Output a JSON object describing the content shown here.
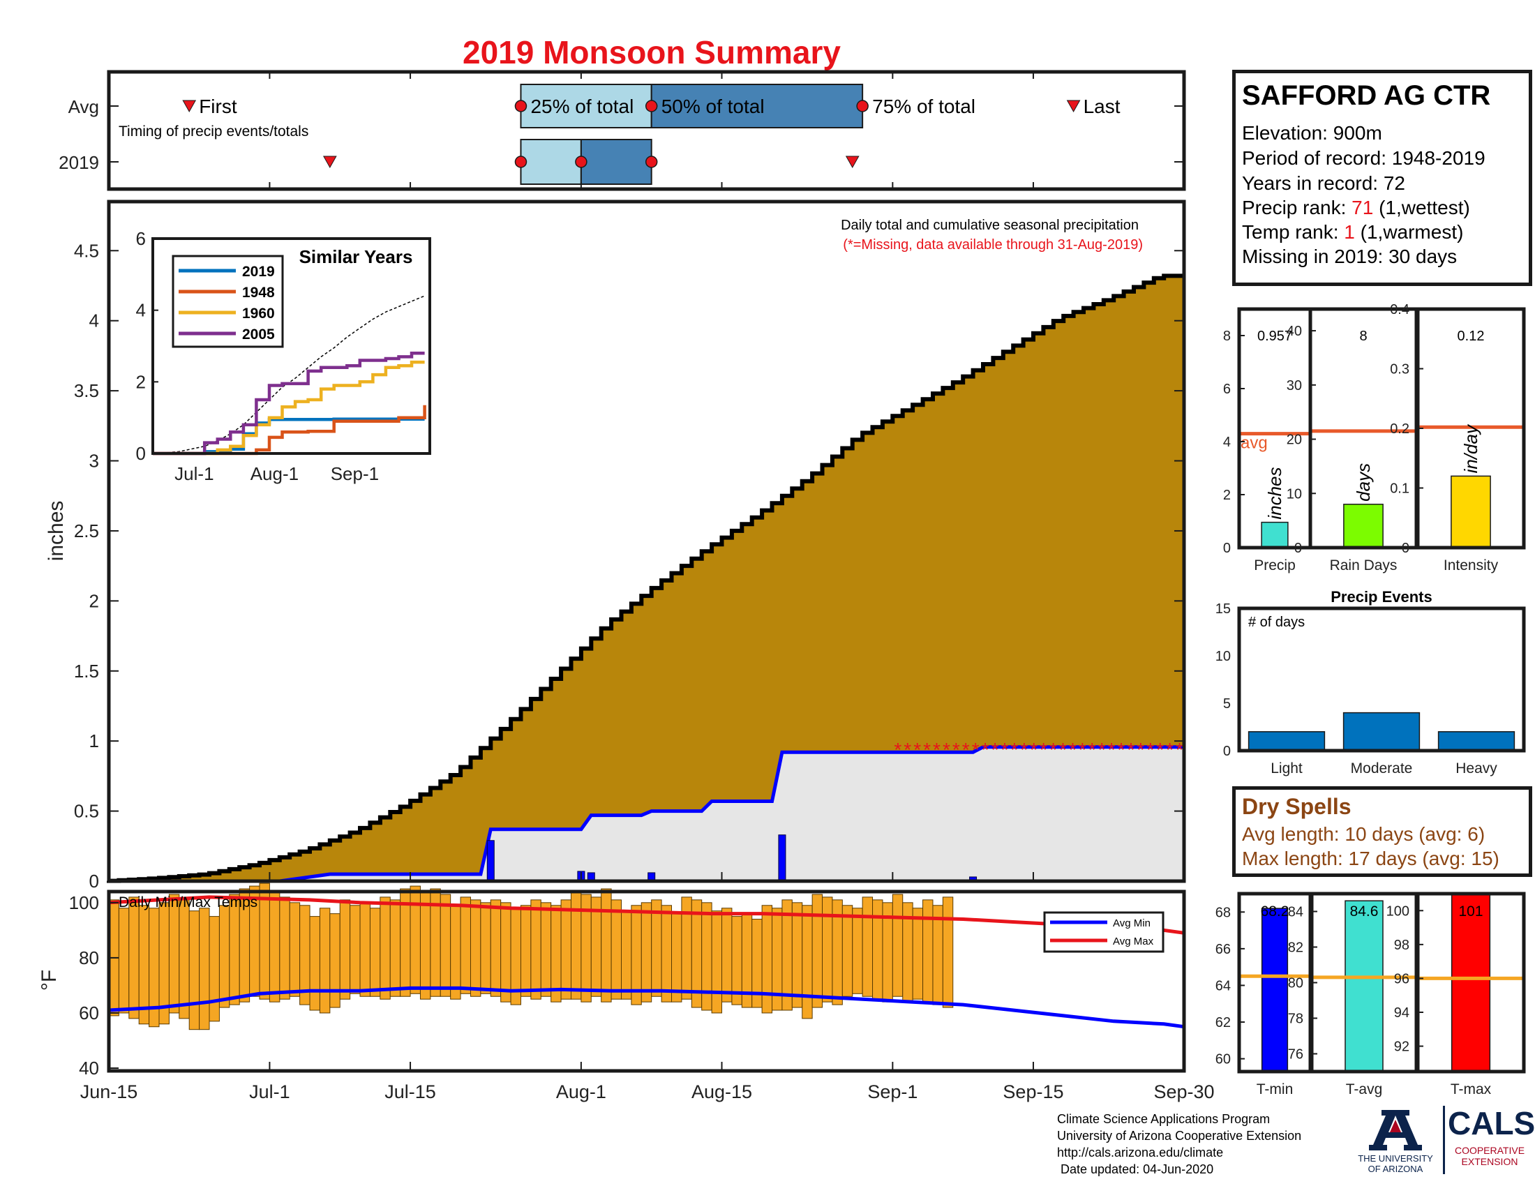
{
  "title": "2019 Monsoon Summary",
  "station": {
    "name": "SAFFORD AG CTR",
    "elevation_label": "Elevation: 900m",
    "period_label": "Period of record: 1948-2019",
    "years_label": "Years in record: 72",
    "precip_rank_prefix": "Precip rank: ",
    "precip_rank_value": "71",
    "precip_rank_suffix": " (1,wettest)",
    "temp_rank_prefix": "Temp rank: ",
    "temp_rank_value": "1",
    "temp_rank_suffix": " (1,warmest)",
    "missing_label": "Missing in 2019: 30 days"
  },
  "dry_spells": {
    "title": "Dry Spells",
    "avg_line": "Avg length: 10 days (avg: 6)",
    "max_line": "Max length: 17 days (avg: 15)"
  },
  "credits": {
    "line1": "Climate Science Applications Program",
    "line2": "University of Arizona Cooperative Extension",
    "line3": "http://cals.arizona.edu/climate",
    "line4": " Date updated: 04-Jun-2020",
    "ua_line1": "THE UNIVERSITY",
    "ua_line2": "OF ARIZONA",
    "cals": "CALS",
    "cals_line1": "COOPERATIVE",
    "cals_line2": "EXTENSION"
  },
  "colors": {
    "title_red": "#e8141b",
    "cumulative_fill": "#b8860b",
    "cumulative_2019_fill": "#e6e6e6",
    "line_2019": "#0000ff",
    "quartile_light": "#add8e6",
    "quartile_dark": "#4682b4",
    "avg_line": "#e8592a",
    "temp_bar": "#f5a623",
    "avg_min": "#0000ff",
    "avg_max": "#e8141b",
    "bar_blue": "#0072bd"
  },
  "chart_data": [
    {
      "id": "timing",
      "type": "timeline",
      "rows": [
        {
          "label": "Avg",
          "first": "Jun-23",
          "q25": "Jul-26",
          "q50": "Aug-8",
          "q75": "Aug-29",
          "last": "Sep-19"
        },
        {
          "label": "2019",
          "first": "Jul-7",
          "q25": "Jul-26",
          "q50": "Aug-1",
          "q75": "Aug-8",
          "last": "Aug-28"
        }
      ],
      "marker_labels": {
        "first": "First",
        "q25": "25% of total",
        "q50": "50% of total",
        "q75": "75% of total",
        "last": "Last"
      },
      "annotation": "Timing of precip events/totals"
    },
    {
      "id": "main",
      "type": "area",
      "ylabel": "inches",
      "ylim": [
        0,
        4.85
      ],
      "yticks": [
        "0",
        "0.5",
        "1",
        "1.5",
        "2",
        "2.5",
        "3",
        "3.5",
        "4",
        "4.5"
      ],
      "xticks": [
        "Jun-15",
        "Jul-1",
        "Jul-15",
        "Aug-1",
        "Aug-15",
        "Sep-1",
        "Sep-15",
        "Sep-30"
      ],
      "annotation_line1": "Daily total and cumulative seasonal precipitation",
      "annotation_line2": "(*=Missing, data available through 31-Aug-2019)",
      "missing_marker": "*",
      "missing_count": 30,
      "avg_cumulative": {
        "day": [
          0,
          5,
          10,
          15,
          20,
          25,
          30,
          35,
          40,
          45,
          50,
          55,
          60,
          65,
          70,
          75,
          80,
          85,
          90,
          95,
          100,
          105
        ],
        "value": [
          0.0,
          0.02,
          0.05,
          0.12,
          0.22,
          0.36,
          0.55,
          0.78,
          1.12,
          1.48,
          1.84,
          2.12,
          2.38,
          2.62,
          2.88,
          3.18,
          3.38,
          3.58,
          3.8,
          4.02,
          4.16,
          4.32
        ]
      },
      "cumulative_2019": {
        "day": [
          0,
          17,
          22,
          37,
          38,
          47,
          48,
          53,
          54,
          59,
          60,
          66,
          67,
          86,
          87,
          107
        ],
        "value": [
          0.0,
          0.0,
          0.05,
          0.05,
          0.37,
          0.37,
          0.47,
          0.47,
          0.5,
          0.5,
          0.57,
          0.57,
          0.92,
          0.92,
          0.957,
          0.957
        ]
      },
      "daily_2019": [
        {
          "day": 38,
          "value": 0.29
        },
        {
          "day": 47,
          "value": 0.07
        },
        {
          "day": 48,
          "value": 0.06
        },
        {
          "day": 54,
          "value": 0.06
        },
        {
          "day": 67,
          "value": 0.33
        },
        {
          "day": 86,
          "value": 0.03
        }
      ]
    },
    {
      "id": "inset",
      "type": "line",
      "title": "Similar Years",
      "ylim": [
        0,
        6
      ],
      "yticks": [
        "0",
        "2",
        "4",
        "6"
      ],
      "xticks": [
        "Jul-1",
        "Aug-1",
        "Sep-1"
      ],
      "x": [
        0,
        10,
        20,
        25,
        30,
        35,
        40,
        45,
        50,
        55,
        60,
        65,
        70,
        75,
        80,
        85,
        90,
        95,
        100,
        105
      ],
      "series": [
        {
          "name": "2019",
          "color": "#0072bd",
          "values": [
            0,
            0,
            0.05,
            0.05,
            0.12,
            0.55,
            0.85,
            0.95,
            0.95,
            0.95,
            0.95,
            0.95,
            0.96,
            0.96,
            0.96,
            0.96,
            0.96,
            0.96,
            0.96,
            0.96
          ]
        },
        {
          "name": "1948",
          "color": "#d95319",
          "values": [
            0,
            0,
            0,
            0,
            0,
            0,
            0.1,
            0.45,
            0.6,
            0.6,
            0.62,
            0.62,
            0.9,
            0.9,
            0.9,
            0.9,
            0.9,
            1.0,
            1.0,
            1.35
          ]
        },
        {
          "name": "1960",
          "color": "#edb120",
          "values": [
            0,
            0,
            0,
            0.1,
            0.2,
            0.5,
            0.8,
            1.0,
            1.3,
            1.45,
            1.5,
            1.8,
            1.9,
            1.9,
            2.0,
            2.2,
            2.4,
            2.45,
            2.55,
            2.55
          ]
        },
        {
          "name": "2005",
          "color": "#7e2f8e",
          "values": [
            0,
            0,
            0.3,
            0.4,
            0.6,
            0.8,
            1.5,
            1.9,
            1.95,
            1.95,
            2.3,
            2.4,
            2.4,
            2.45,
            2.6,
            2.6,
            2.65,
            2.7,
            2.8,
            2.8
          ]
        }
      ],
      "avg_dashed": [
        0,
        0.05,
        0.2,
        0.35,
        0.55,
        0.8,
        1.15,
        1.5,
        1.85,
        2.1,
        2.4,
        2.7,
        2.95,
        3.25,
        3.5,
        3.75,
        3.95,
        4.1,
        4.25,
        4.4
      ]
    },
    {
      "id": "temps",
      "type": "bar",
      "title": "Daily Min/Max Temps",
      "ylabel": "°F",
      "ylim": [
        39,
        104
      ],
      "yticks": [
        "40",
        "60",
        "80",
        "100"
      ],
      "xticks": [
        "Jun-15",
        "Jul-1",
        "Jul-15",
        "Aug-1",
        "Aug-15",
        "Sep-1",
        "Sep-15",
        "Sep-30"
      ],
      "legend": [
        "Avg Min",
        "Avg Max"
      ],
      "avg_min": {
        "day": [
          0,
          5,
          10,
          15,
          20,
          25,
          30,
          35,
          40,
          45,
          50,
          55,
          60,
          65,
          70,
          75,
          80,
          85,
          90,
          95,
          100,
          105,
          107
        ],
        "value": [
          61,
          62,
          64,
          67,
          68,
          68,
          69,
          69,
          68,
          68.5,
          68,
          68,
          67.5,
          67,
          66,
          65,
          64,
          63,
          61,
          59,
          57,
          56,
          55
        ]
      },
      "avg_max": {
        "day": [
          0,
          5,
          10,
          15,
          20,
          25,
          30,
          35,
          40,
          45,
          50,
          55,
          60,
          65,
          70,
          75,
          80,
          85,
          90,
          95,
          100,
          105,
          107
        ],
        "value": [
          100,
          101,
          102,
          101.5,
          101,
          100,
          99.5,
          99,
          98,
          97.5,
          97,
          96.5,
          96,
          96,
          95.5,
          95,
          94.5,
          94,
          93,
          92,
          91,
          90,
          89
        ]
      },
      "daily_min": [
        59,
        60,
        58,
        56,
        55,
        56,
        60,
        58,
        54,
        54,
        57,
        62,
        63,
        64,
        66,
        65,
        64,
        65,
        66,
        63,
        61,
        60,
        62,
        65,
        67,
        66,
        66,
        65,
        66,
        66,
        67,
        65,
        66,
        66,
        65,
        67,
        66,
        67,
        66,
        64,
        63,
        66,
        65,
        66,
        64,
        65,
        65,
        64,
        66,
        64,
        65,
        65,
        63,
        64,
        66,
        64,
        64,
        65,
        62,
        61,
        60,
        64,
        63,
        62,
        62,
        60,
        61,
        61,
        62,
        58,
        62,
        64,
        63,
        66,
        67,
        66,
        65,
        64,
        66,
        64,
        65,
        64,
        63,
        62
      ],
      "daily_max": [
        101,
        98,
        102,
        99,
        98,
        100,
        103,
        101,
        97,
        98,
        95,
        99,
        103,
        105,
        106,
        107,
        104,
        102,
        100,
        99,
        95,
        98,
        96,
        101,
        99,
        100,
        98,
        102,
        101,
        105,
        106,
        104,
        105,
        103,
        99,
        102,
        101,
        100,
        101,
        100,
        98,
        99,
        101,
        100,
        99,
        101,
        104,
        103,
        102,
        105,
        101,
        97,
        99,
        100,
        101,
        99,
        96,
        102,
        101,
        100,
        97,
        98,
        95,
        96,
        94,
        99,
        98,
        101,
        100,
        99,
        103,
        102,
        101,
        99,
        98,
        102,
        101,
        100,
        103,
        100,
        98,
        101,
        99,
        102
      ]
    },
    {
      "id": "precip_totals",
      "type": "bar",
      "title": "Precip",
      "axis_label": "inches",
      "value": 0.957,
      "value_label": "0.957",
      "avg": 4.3,
      "avg_label": "avg",
      "ylim": [
        0,
        9
      ],
      "yticks": [
        "0",
        "2",
        "4",
        "6",
        "8"
      ]
    },
    {
      "id": "rain_days",
      "type": "bar",
      "title": "Rain Days",
      "axis_label": "days",
      "value": 8,
      "value_label": "8",
      "avg": 21.5,
      "ylim": [
        0,
        44
      ],
      "yticks": [
        "0",
        "10",
        "20",
        "30",
        "40"
      ]
    },
    {
      "id": "intensity",
      "type": "bar",
      "title": "Intensity",
      "axis_label": "in/day",
      "value": 0.12,
      "value_label": "0.12",
      "avg": 0.202,
      "ylim": [
        0,
        0.4
      ],
      "yticks": [
        "0",
        "0.1",
        "0.2",
        "0.3",
        "0.4"
      ]
    },
    {
      "id": "precip_events",
      "type": "bar",
      "title": "Precip Events",
      "annotation": "# of days",
      "categories": [
        "Light",
        "Moderate",
        "Heavy"
      ],
      "values": [
        2,
        4,
        2
      ],
      "ylim": [
        0,
        15
      ],
      "yticks": [
        "0",
        "5",
        "10",
        "15"
      ]
    },
    {
      "id": "tmin",
      "type": "bar",
      "title": "T-min",
      "value": 68.2,
      "value_label": "68.2",
      "avg": 64.5,
      "ylim": [
        59.3,
        69
      ],
      "yticks": [
        "60",
        "62",
        "64",
        "66",
        "68"
      ]
    },
    {
      "id": "tavg",
      "type": "bar",
      "title": "T-avg",
      "value": 84.6,
      "value_label": "84.6",
      "avg": 80.3,
      "ylim": [
        75,
        85
      ],
      "yticks": [
        "76",
        "78",
        "80",
        "82",
        "84"
      ]
    },
    {
      "id": "tmax",
      "type": "bar",
      "title": "T-max",
      "value": 101,
      "value_label": "101",
      "avg": 96,
      "ylim": [
        90.5,
        101
      ],
      "yticks": [
        "92",
        "94",
        "96",
        "98",
        "100"
      ]
    }
  ]
}
